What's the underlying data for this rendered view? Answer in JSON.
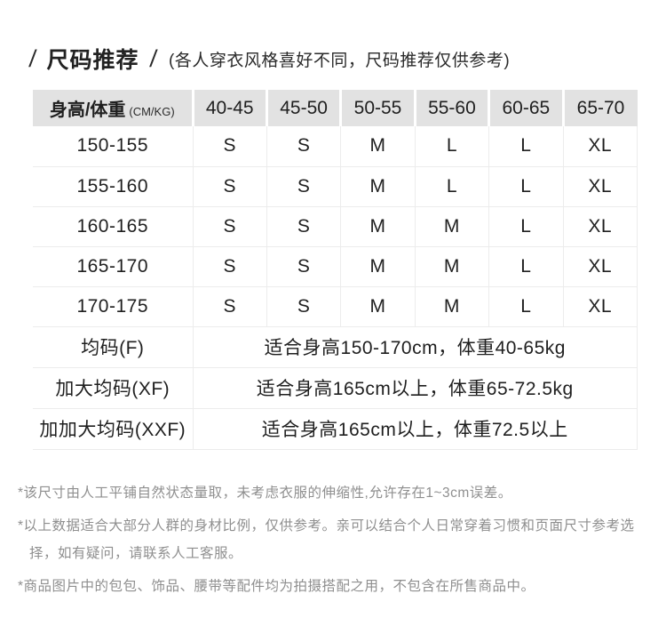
{
  "title": {
    "slash_left": "/",
    "text": "尺码推荐",
    "slash_right": "/",
    "subtitle": "(各人穿衣风格喜好不同，尺码推荐仅供参考)"
  },
  "size_table": {
    "header": {
      "label": "身高/体重",
      "unit": "(CM/KG)",
      "weight_columns": [
        "40-45",
        "45-50",
        "50-55",
        "55-60",
        "60-65",
        "65-70"
      ]
    },
    "rows": [
      {
        "height": "150-155",
        "sizes": [
          "S",
          "S",
          "M",
          "L",
          "L",
          "XL"
        ]
      },
      {
        "height": "155-160",
        "sizes": [
          "S",
          "S",
          "M",
          "L",
          "L",
          "XL"
        ]
      },
      {
        "height": "160-165",
        "sizes": [
          "S",
          "S",
          "M",
          "M",
          "L",
          "XL"
        ]
      },
      {
        "height": "165-170",
        "sizes": [
          "S",
          "S",
          "M",
          "M",
          "L",
          "XL"
        ]
      },
      {
        "height": "170-175",
        "sizes": [
          "S",
          "S",
          "M",
          "M",
          "L",
          "XL"
        ]
      }
    ],
    "merged_rows": [
      {
        "label": "均码(F)",
        "description": "适合身高150-170cm，体重40-65kg"
      },
      {
        "label": "加大均码(XF)",
        "description": "适合身高165cm以上，体重65-72.5kg"
      },
      {
        "label": "加加大均码(XXF)",
        "description": "适合身高165cm以上，体重72.5以上"
      }
    ]
  },
  "footnotes": [
    {
      "lines": [
        "*该尺寸由人工平铺自然状态量取，未考虑衣服的伸缩性,允许存在1~3cm误差。"
      ]
    },
    {
      "lines": [
        "*以上数据适合大部分人群的身材比例，仅供参考。亲可以结合个人日常穿着习惯和页面尺寸参考选",
        "择，如有疑问，请联系人工客服。"
      ]
    },
    {
      "lines": [
        "*商品图片中的包包、饰品、腰带等配件均为拍摄搭配之用，不包含在所售商品中。"
      ]
    }
  ],
  "colors": {
    "header_bg": "#e2e2e2",
    "divider": "#ececec",
    "text": "#1f1f1f",
    "note_text": "#8f8f8f"
  }
}
